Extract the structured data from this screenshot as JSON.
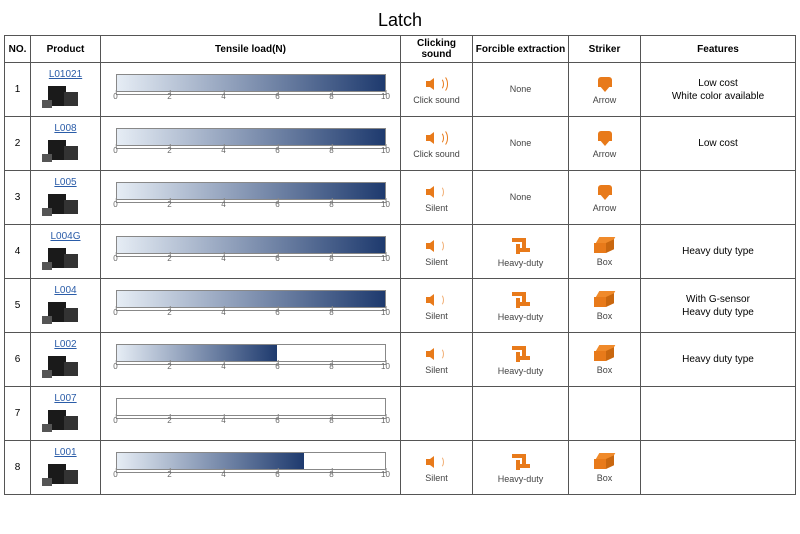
{
  "title": "Latch",
  "columns": [
    "NO.",
    "Product",
    "Tensile load(N)",
    "Clicking sound",
    "Forcible extraction",
    "Striker",
    "Features"
  ],
  "tensile": {
    "min": 0,
    "max": 10,
    "ticks": [
      0,
      2,
      4,
      6,
      8,
      10
    ],
    "bar_border": "#888888",
    "bar_bg": "#ffffff",
    "grad_start": "#e6edf5",
    "grad_end": "#1e3a6e",
    "tick_color": "#666666"
  },
  "icon_color": "#e87a1a",
  "product_label_color": "#2a5ca8",
  "sound_labels": {
    "click": "Click sound",
    "silent": "Silent"
  },
  "forcible_labels": {
    "none": "None",
    "heavy": "Heavy-duty"
  },
  "striker_labels": {
    "arrow": "Arrow",
    "box": "Box"
  },
  "rows": [
    {
      "no": "1",
      "product": "L01021",
      "load": 10,
      "sound": "click",
      "forcible": "none",
      "striker": "arrow",
      "features": "Low cost\nWhite color available"
    },
    {
      "no": "2",
      "product": "L008",
      "load": 10,
      "sound": "click",
      "forcible": "none",
      "striker": "arrow",
      "features": "Low cost"
    },
    {
      "no": "3",
      "product": "L005",
      "load": 10,
      "sound": "silent",
      "forcible": "none",
      "striker": "arrow",
      "features": ""
    },
    {
      "no": "4",
      "product": "L004G",
      "load": 10,
      "sound": "silent",
      "forcible": "heavy",
      "striker": "box",
      "features": "Heavy duty type"
    },
    {
      "no": "5",
      "product": "L004",
      "load": 10,
      "sound": "silent",
      "forcible": "heavy",
      "striker": "box",
      "features": "With G-sensor\nHeavy duty type"
    },
    {
      "no": "6",
      "product": "L002",
      "load": 6,
      "sound": "silent",
      "forcible": "heavy",
      "striker": "box",
      "features": "Heavy duty type"
    },
    {
      "no": "7",
      "product": "L007",
      "load": null,
      "sound": null,
      "forcible": null,
      "striker": null,
      "features": ""
    },
    {
      "no": "8",
      "product": "L001",
      "load": 7,
      "sound": "silent",
      "forcible": "heavy",
      "striker": "box",
      "features": ""
    }
  ]
}
